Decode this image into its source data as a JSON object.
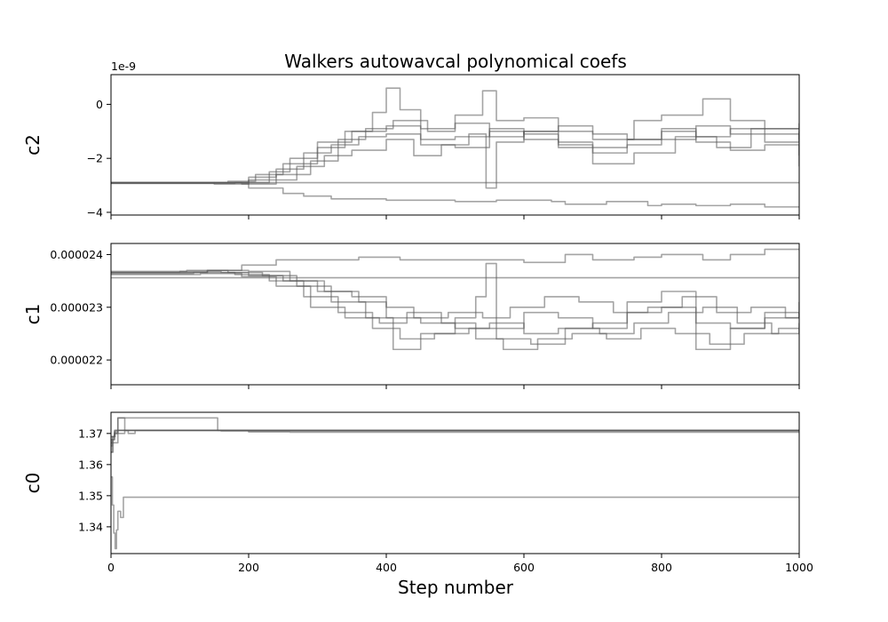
{
  "chart_data": {
    "type": "line",
    "title": "Walkers autowavcal polynomical coefs",
    "xlabel": "Step number",
    "xlim": [
      0,
      1000
    ],
    "xticks": [
      "0",
      "200",
      "400",
      "600",
      "800",
      "1000"
    ],
    "walker_color": "#5a5a5a",
    "panels": [
      {
        "ylabel": "c2",
        "offset_text": "1e-9",
        "ylim": [
          -4.1,
          1.1
        ],
        "yticks": [
          {
            "value": 0,
            "label": "0"
          },
          {
            "value": -2,
            "label": "−2"
          },
          {
            "value": -4,
            "label": "−4"
          }
        ],
        "series": [
          {
            "x": [
              0,
              100,
              150,
              200,
              230,
              260,
              300,
              350,
              400,
              450,
              500,
              550,
              600,
              650,
              700,
              750,
              800,
              850,
              900,
              950,
              1000
            ],
            "values": [
              -2.9,
              -2.9,
              -2.95,
              -2.8,
              -2.5,
              -2.0,
              -1.4,
              -1.0,
              -0.8,
              -1.3,
              -1.2,
              -0.9,
              -1.1,
              -1.4,
              -1.6,
              -1.3,
              -1.0,
              -1.2,
              -0.9,
              -1.1,
              -1.3
            ]
          },
          {
            "x": [
              0,
              100,
              150,
              200,
              240,
              280,
              320,
              360,
              400,
              450,
              500,
              550,
              600,
              650,
              700,
              750,
              800,
              850,
              900,
              950,
              1000
            ],
            "values": [
              -2.92,
              -2.92,
              -2.9,
              -2.7,
              -2.4,
              -1.8,
              -1.5,
              -1.2,
              -1.1,
              -1.5,
              -1.6,
              -1.0,
              -1.3,
              -1.6,
              -1.8,
              -1.5,
              -1.3,
              -0.8,
              -1.1,
              -1.4,
              -1.0
            ]
          },
          {
            "x": [
              0,
              100,
              170,
              210,
              250,
              300,
              340,
              380,
              400,
              420,
              450,
              500,
              540,
              560,
              600,
              650,
              700,
              760,
              800,
              860,
              900,
              950,
              1000
            ],
            "values": [
              -2.9,
              -2.9,
              -2.85,
              -2.6,
              -2.2,
              -1.6,
              -1.0,
              -0.3,
              0.6,
              -0.2,
              -0.9,
              -0.4,
              0.5,
              -0.6,
              -0.5,
              -1.0,
              -1.3,
              -0.6,
              -0.4,
              0.2,
              -0.6,
              -0.9,
              -0.7
            ]
          },
          {
            "x": [
              0,
              120,
              180,
              230,
              270,
              310,
              350,
              400,
              440,
              480,
              520,
              545,
              560,
              600,
              650,
              700,
              760,
              820,
              880,
              930,
              1000
            ],
            "values": [
              -2.93,
              -2.93,
              -2.9,
              -2.8,
              -2.3,
              -1.9,
              -1.7,
              -1.3,
              -1.9,
              -1.5,
              -1.1,
              -3.1,
              -1.4,
              -1.0,
              -1.5,
              -2.2,
              -1.8,
              -1.2,
              -1.6,
              -0.9,
              -2.3
            ]
          },
          {
            "x": [
              0,
              130,
              190,
              240,
              290,
              330,
              370,
              410,
              460,
              500,
              550,
              600,
              650,
              700,
              750,
              800,
              850,
              900,
              950,
              1000
            ],
            "values": [
              -2.9,
              -2.9,
              -2.95,
              -2.6,
              -2.1,
              -1.3,
              -0.9,
              -0.6,
              -1.0,
              -0.7,
              -1.2,
              -1.0,
              -0.8,
              -1.1,
              -1.3,
              -0.9,
              -1.4,
              -1.7,
              -1.5,
              -1.9
            ]
          },
          {
            "x": [
              0,
              1000
            ],
            "values": [
              -2.9,
              -2.9
            ]
          },
          {
            "x": [
              0,
              140,
              200,
              250,
              280,
              320,
              400,
              500,
              560,
              640,
              660,
              720,
              780,
              800,
              850,
              900,
              950,
              1000
            ],
            "values": [
              -2.9,
              -2.9,
              -3.1,
              -3.3,
              -3.4,
              -3.5,
              -3.55,
              -3.6,
              -3.55,
              -3.6,
              -3.7,
              -3.6,
              -3.75,
              -3.7,
              -3.75,
              -3.7,
              -3.8,
              -3.8
            ]
          }
        ]
      },
      {
        "ylabel": "c1",
        "offset_text": "",
        "ylim": [
          2.153e-05,
          2.421e-05
        ],
        "yticks": [
          {
            "value": 2.4e-05,
            "label": "0.000024"
          },
          {
            "value": 2.3e-05,
            "label": "0.000023"
          },
          {
            "value": 2.2e-05,
            "label": "0.000022"
          }
        ],
        "series": [
          {
            "x": [
              0,
              100,
              160,
              200,
              250,
              300,
              350,
              400,
              450,
              500,
              550,
              600,
              650,
              700,
              750,
              800,
              850,
              900,
              950,
              1000
            ],
            "values": [
              2.366e-05,
              2.368e-05,
              2.366e-05,
              2.36e-05,
              2.35e-05,
              2.33e-05,
              2.32e-05,
              2.28e-05,
              2.27e-05,
              2.26e-05,
              2.27e-05,
              2.25e-05,
              2.26e-05,
              2.27e-05,
              2.29e-05,
              2.3e-05,
              2.27e-05,
              2.26e-05,
              2.28e-05,
              2.29e-05
            ]
          },
          {
            "x": [
              0,
              120,
              180,
              230,
              280,
              330,
              380,
              420,
              470,
              520,
              560,
              610,
              660,
              710,
              760,
              810,
              860,
              910,
              960,
              1000
            ],
            "values": [
              2.364e-05,
              2.366e-05,
              2.362e-05,
              2.35e-05,
              2.32e-05,
              2.29e-05,
              2.26e-05,
              2.24e-05,
              2.25e-05,
              2.26e-05,
              2.24e-05,
              2.23e-05,
              2.26e-05,
              2.25e-05,
              2.27e-05,
              2.29e-05,
              2.3e-05,
              2.27e-05,
              2.25e-05,
              2.26e-05
            ]
          },
          {
            "x": [
              0,
              110,
              170,
              220,
              270,
              320,
              370,
              410,
              450,
              500,
              530,
              545,
              560,
              600,
              650,
              700,
              750,
              800,
              850,
              900,
              950,
              1000
            ],
            "values": [
              2.368e-05,
              2.37e-05,
              2.366e-05,
              2.36e-05,
              2.34e-05,
              2.31e-05,
              2.28e-05,
              2.22e-05,
              2.25e-05,
              2.28e-05,
              2.32e-05,
              2.383e-05,
              2.26e-05,
              2.29e-05,
              2.28e-05,
              2.26e-05,
              2.31e-05,
              2.33e-05,
              2.22e-05,
              2.26e-05,
              2.29e-05,
              2.31e-05
            ]
          },
          {
            "x": [
              0,
              130,
              190,
              240,
              290,
              340,
              390,
              430,
              480,
              530,
              570,
              620,
              670,
              720,
              770,
              820,
              870,
              920,
              970,
              1000
            ],
            "values": [
              2.362e-05,
              2.364e-05,
              2.358e-05,
              2.34e-05,
              2.3e-05,
              2.28e-05,
              2.27e-05,
              2.29e-05,
              2.27e-05,
              2.24e-05,
              2.22e-05,
              2.24e-05,
              2.25e-05,
              2.24e-05,
              2.26e-05,
              2.25e-05,
              2.23e-05,
              2.25e-05,
              2.26e-05,
              2.27e-05
            ]
          },
          {
            "x": [
              0,
              140,
              200,
              260,
              310,
              360,
              400,
              440,
              490,
              540,
              580,
              630,
              680,
              730,
              780,
              830,
              880,
              930,
              980,
              1000
            ],
            "values": [
              2.366e-05,
              2.37e-05,
              2.368e-05,
              2.35e-05,
              2.33e-05,
              2.31e-05,
              2.3e-05,
              2.28e-05,
              2.29e-05,
              2.28e-05,
              2.3e-05,
              2.32e-05,
              2.31e-05,
              2.29e-05,
              2.3e-05,
              2.32e-05,
              2.29e-05,
              2.3e-05,
              2.28e-05,
              2.29e-05
            ]
          },
          {
            "x": [
              0,
              1000
            ],
            "values": [
              2.356e-05,
              2.356e-05
            ]
          },
          {
            "x": [
              0,
              140,
              190,
              240,
              300,
              360,
              420,
              500,
              560,
              600,
              660,
              700,
              760,
              800,
              860,
              900,
              950,
              1000
            ],
            "values": [
              2.366e-05,
              2.37e-05,
              2.38e-05,
              2.39e-05,
              2.39e-05,
              2.395e-05,
              2.39e-05,
              2.39e-05,
              2.39e-05,
              2.385e-05,
              2.4e-05,
              2.39e-05,
              2.395e-05,
              2.4e-05,
              2.39e-05,
              2.4e-05,
              2.41e-05,
              2.41e-05
            ]
          }
        ]
      },
      {
        "ylabel": "c0",
        "offset_text": "",
        "ylim": [
          1.3314,
          1.3768
        ],
        "yticks": [
          {
            "value": 1.37,
            "label": "1.37"
          },
          {
            "value": 1.36,
            "label": "1.36"
          },
          {
            "value": 1.35,
            "label": "1.35"
          },
          {
            "value": 1.34,
            "label": "1.34"
          }
        ],
        "series": [
          {
            "x": [
              0,
              2,
              5,
              10,
              15,
              20,
              1000
            ],
            "values": [
              1.366,
              1.369,
              1.37,
              1.371,
              1.371,
              1.371,
              1.371
            ]
          },
          {
            "x": [
              0,
              2,
              5,
              10,
              1000
            ],
            "values": [
              1.364,
              1.368,
              1.3705,
              1.371,
              1.3712
            ]
          },
          {
            "x": [
              0,
              5,
              10,
              15,
              20,
              25,
              30,
              35,
              1000
            ],
            "values": [
              1.368,
              1.37,
              1.375,
              1.375,
              1.371,
              1.37,
              1.37,
              1.371,
              1.3712
            ]
          },
          {
            "x": [
              0,
              5,
              10,
              150,
              155,
              160,
              1000
            ],
            "values": [
              1.369,
              1.371,
              1.375,
              1.375,
              1.371,
              1.3708,
              1.3708
            ]
          },
          {
            "x": [
              0,
              10,
              20,
              200,
              260,
              1000
            ],
            "values": [
              1.367,
              1.37,
              1.371,
              1.3705,
              1.3704,
              1.3704
            ]
          },
          {
            "x": [
              0,
              2,
              4,
              6,
              8,
              10,
              14,
              18,
              1000
            ],
            "values": [
              1.356,
              1.347,
              1.338,
              1.333,
              1.339,
              1.345,
              1.343,
              1.3495,
              1.3495
            ]
          },
          {
            "x": [
              0,
              3,
              6,
              1000
            ],
            "values": [
              1.364,
              1.369,
              1.371,
              1.3712
            ]
          }
        ]
      }
    ]
  }
}
